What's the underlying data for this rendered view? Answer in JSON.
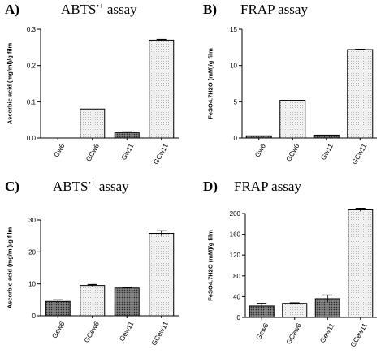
{
  "chart_data": [
    {
      "id": "A",
      "type": "bar",
      "letter": "A)",
      "title_text": "ABTS",
      "title_sup": "•+",
      "title_tail": " assay",
      "ylabel": "Ascorbic acid (mg/ml)/g film",
      "ylim": [
        0,
        0.3
      ],
      "yticks": [
        0.0,
        0.1,
        0.2,
        0.3
      ],
      "ytick_labels": [
        "0.0",
        "0.1",
        "0.2",
        "0.3"
      ],
      "categories": [
        "Gw6",
        "GCw6",
        "Gw11",
        "GCw11"
      ],
      "values": [
        0,
        0.08,
        0.015,
        0.27
      ],
      "errors": [
        0,
        0,
        0.002,
        0.002
      ],
      "patterns": [
        "dark",
        "light",
        "dark",
        "light"
      ]
    },
    {
      "id": "B",
      "type": "bar",
      "letter": "B)",
      "title_text": "FRAP assay",
      "ylabel": "FeSO4.7H2O (mM)/g film",
      "ylim": [
        0,
        15
      ],
      "yticks": [
        0,
        5,
        10,
        15
      ],
      "ytick_labels": [
        "0",
        "5",
        "10",
        "15"
      ],
      "categories": [
        "Gw6",
        "GCw6",
        "Gw11",
        "GCw11"
      ],
      "values": [
        0.3,
        5.2,
        0.4,
        12.2
      ],
      "errors": [
        0,
        0,
        0,
        0.05
      ],
      "patterns": [
        "dark",
        "light",
        "dark",
        "light"
      ]
    },
    {
      "id": "C",
      "type": "bar",
      "letter": "C)",
      "title_text": "ABTS",
      "title_sup": "•+",
      "title_tail": " assay",
      "ylabel": "Ascorbic acid (mg/ml)/g film",
      "ylim": [
        0,
        30
      ],
      "yticks": [
        0,
        10,
        20,
        30
      ],
      "ytick_labels": [
        "0",
        "10",
        "20",
        "30"
      ],
      "categories": [
        "Gew6",
        "GCew6",
        "Gew11",
        "GCew11"
      ],
      "values": [
        4.5,
        9.5,
        8.7,
        25.8
      ],
      "errors": [
        0.5,
        0.3,
        0.2,
        0.8
      ],
      "patterns": [
        "dark",
        "light",
        "dark",
        "light"
      ]
    },
    {
      "id": "D",
      "type": "bar",
      "letter": "D)",
      "title_text": "FRAP assay",
      "ylabel": "FeSO4.7H2O (mM)/g film",
      "ylim": [
        0,
        200
      ],
      "yticks": [
        0,
        40,
        80,
        120,
        160,
        200
      ],
      "ytick_labels": [
        "0",
        "40",
        "80",
        "120",
        "160",
        "200"
      ],
      "categories": [
        "Gew6",
        "GCew6",
        "Gew11",
        "GCew11"
      ],
      "values": [
        22,
        27,
        36,
        207
      ],
      "errors": [
        5,
        1,
        7,
        3
      ],
      "patterns": [
        "dark",
        "light",
        "dark",
        "light"
      ]
    }
  ]
}
